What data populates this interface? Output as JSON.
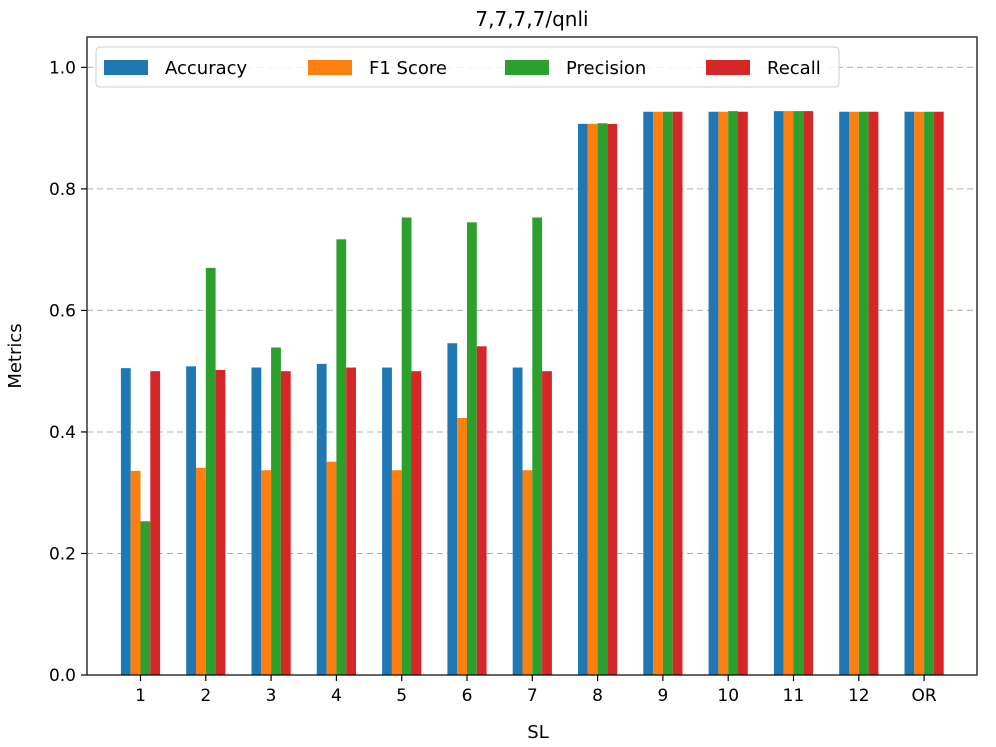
{
  "chart_data": {
    "type": "bar",
    "title": "7,7,7,7/qnli",
    "xlabel": "SL",
    "ylabel": "Metrics",
    "ylim": [
      0,
      1.05
    ],
    "yticks": [
      "0.0",
      "0.2",
      "0.4",
      "0.6",
      "0.8",
      "1.0"
    ],
    "grid": "y-dashed",
    "legend_position": "top",
    "categories": [
      "1",
      "2",
      "3",
      "4",
      "5",
      "6",
      "7",
      "8",
      "9",
      "10",
      "11",
      "12",
      "OR"
    ],
    "series": [
      {
        "name": "Accuracy",
        "color": "#1f77b4",
        "values": [
          0.505,
          0.508,
          0.506,
          0.512,
          0.506,
          0.546,
          0.506,
          0.907,
          0.927,
          0.927,
          0.928,
          0.927,
          0.927
        ]
      },
      {
        "name": "F1 Score",
        "color": "#ff7f0e",
        "values": [
          0.336,
          0.341,
          0.337,
          0.351,
          0.337,
          0.423,
          0.337,
          0.907,
          0.927,
          0.927,
          0.928,
          0.927,
          0.927
        ]
      },
      {
        "name": "Precision",
        "color": "#2ca02c",
        "values": [
          0.253,
          0.67,
          0.539,
          0.717,
          0.753,
          0.745,
          0.753,
          0.908,
          0.927,
          0.928,
          0.928,
          0.927,
          0.927
        ]
      },
      {
        "name": "Recall",
        "color": "#d62728",
        "values": [
          0.5,
          0.502,
          0.5,
          0.506,
          0.5,
          0.541,
          0.5,
          0.907,
          0.927,
          0.927,
          0.928,
          0.927,
          0.927
        ]
      }
    ]
  }
}
